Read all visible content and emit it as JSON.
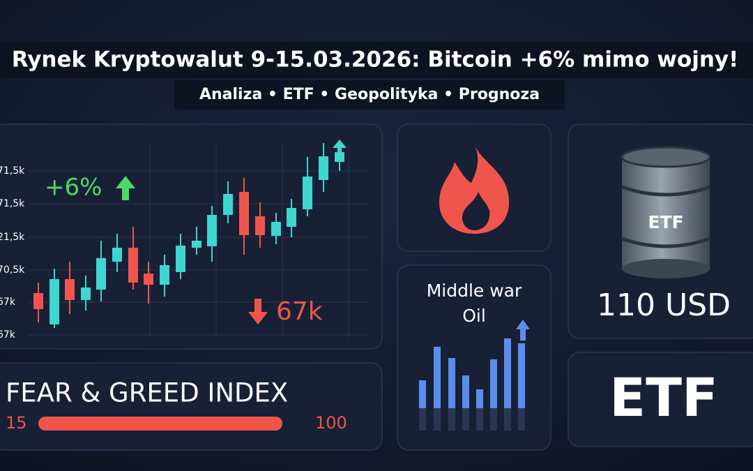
{
  "header": {
    "title": "Rynek Kryptowalut 9-15.03.2026: Bitcoin +6% mimo wojny!",
    "subtitle": "Analiza • ETF • Geopolityka • Prognoza"
  },
  "price_panel": {
    "axis_labels": [
      "71,5k",
      "71,5k",
      "21,5k",
      "70,5k",
      "67k",
      "67k"
    ],
    "gain_label": "+6%",
    "low_label": "67k"
  },
  "fear_greed": {
    "title": "FEAR & GREED INDEX",
    "min_label": "15",
    "max_label": "100"
  },
  "oil_panel": {
    "title_lines": [
      "Middle war",
      "Oil"
    ]
  },
  "etf_panel": {
    "barrel_label": "ETF",
    "price": "110 USD"
  },
  "etf_logo": {
    "label": "ETF"
  }
}
